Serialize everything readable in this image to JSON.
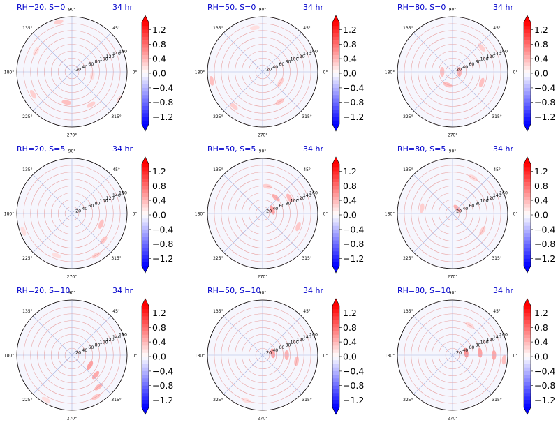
{
  "figure": {
    "time_label": "34 hr",
    "colors": {
      "title": "#0000cc",
      "cmap_low": "#0000ff",
      "cmap_mid": "#ffffff",
      "cmap_high": "#ff0000",
      "radial_grid_positive": "#e8a0a0",
      "radial_grid_negative": "#a8b4e0",
      "axis_frame": "#000000"
    }
  },
  "chart_data": [
    {
      "type": "heatmap",
      "projection": "polar",
      "title": "RH=20, S=0",
      "time": "34 hr",
      "rh": 20,
      "s": 0,
      "field": [
        {
          "r": 150,
          "theta": 105,
          "value": 0.3
        },
        {
          "r": 120,
          "theta": 150,
          "value": 0.2
        },
        {
          "r": 130,
          "theta": 210,
          "value": 0.3
        },
        {
          "r": 90,
          "theta": 260,
          "value": 0.4
        },
        {
          "r": 110,
          "theta": 300,
          "value": 0.3
        },
        {
          "r": 160,
          "theta": 330,
          "value": 0.25
        },
        {
          "r": 60,
          "theta": 350,
          "value": 0.2
        }
      ]
    },
    {
      "type": "heatmap",
      "projection": "polar",
      "title": "RH=50, S=0",
      "time": "34 hr",
      "rh": 50,
      "s": 0,
      "field": [
        {
          "r": 150,
          "theta": 190,
          "value": 0.4
        },
        {
          "r": 130,
          "theta": 230,
          "value": 0.3
        },
        {
          "r": 100,
          "theta": 300,
          "value": 0.35
        },
        {
          "r": 60,
          "theta": 330,
          "value": 0.3
        },
        {
          "r": 130,
          "theta": 100,
          "value": 0.2
        }
      ]
    },
    {
      "type": "heatmap",
      "projection": "polar",
      "title": "RH=80, S=0",
      "time": "34 hr",
      "rh": 80,
      "s": 0,
      "field": [
        {
          "r": 20,
          "theta": 0,
          "value": 0.5
        },
        {
          "r": 30,
          "theta": 180,
          "value": 0.4
        },
        {
          "r": 40,
          "theta": 250,
          "value": 0.4
        },
        {
          "r": 90,
          "theta": 340,
          "value": 0.4
        },
        {
          "r": 110,
          "theta": 40,
          "value": 0.3
        }
      ]
    },
    {
      "type": "heatmap",
      "projection": "polar",
      "title": "RH=20, S=5",
      "time": "34 hr",
      "rh": 20,
      "s": 5,
      "field": [
        {
          "r": 90,
          "theta": 340,
          "value": 0.4
        },
        {
          "r": 120,
          "theta": 320,
          "value": 0.35
        },
        {
          "r": 140,
          "theta": 300,
          "value": 0.3
        },
        {
          "r": 130,
          "theta": 250,
          "value": 0.2
        },
        {
          "r": 150,
          "theta": 200,
          "value": 0.2
        }
      ]
    },
    {
      "type": "heatmap",
      "projection": "polar",
      "title": "RH=50, S=5",
      "time": "34 hr",
      "rh": 50,
      "s": 5,
      "field": [
        {
          "r": 30,
          "theta": 20,
          "value": 0.6
        },
        {
          "r": 60,
          "theta": 50,
          "value": 0.5
        },
        {
          "r": 90,
          "theta": 30,
          "value": 0.45
        },
        {
          "r": 110,
          "theta": 340,
          "value": 0.35
        },
        {
          "r": 80,
          "theta": 80,
          "value": 0.3
        }
      ]
    },
    {
      "type": "heatmap",
      "projection": "polar",
      "title": "RH=80, S=5",
      "time": "34 hr",
      "rh": 80,
      "s": 5,
      "field": [
        {
          "r": 20,
          "theta": 45,
          "value": 0.5
        },
        {
          "r": 90,
          "theta": 170,
          "value": 0.3
        },
        {
          "r": 100,
          "theta": 330,
          "value": 0.3
        },
        {
          "r": 120,
          "theta": 60,
          "value": 0.25
        }
      ]
    },
    {
      "type": "heatmap",
      "projection": "polar",
      "title": "RH=20, S=10",
      "time": "34 hr",
      "rh": 20,
      "s": 10,
      "field": [
        {
          "r": 60,
          "theta": 330,
          "value": 0.6
        },
        {
          "r": 90,
          "theta": 320,
          "value": 0.55
        },
        {
          "r": 120,
          "theta": 310,
          "value": 0.45
        },
        {
          "r": 140,
          "theta": 300,
          "value": 0.35
        },
        {
          "r": 150,
          "theta": 240,
          "value": 0.2
        }
      ]
    },
    {
      "type": "heatmap",
      "projection": "polar",
      "title": "RH=50, S=10",
      "time": "34 hr",
      "rh": 50,
      "s": 10,
      "field": [
        {
          "r": 30,
          "theta": 10,
          "value": 0.6
        },
        {
          "r": 70,
          "theta": 0,
          "value": 0.5
        },
        {
          "r": 100,
          "theta": 350,
          "value": 0.4
        },
        {
          "r": 140,
          "theta": 250,
          "value": 0.2
        }
      ]
    },
    {
      "type": "heatmap",
      "projection": "polar",
      "title": "RH=80, S=10",
      "time": "34 hr",
      "rh": 80,
      "s": 10,
      "field": [
        {
          "r": 40,
          "theta": 10,
          "value": 0.7
        },
        {
          "r": 80,
          "theta": 5,
          "value": 0.6
        },
        {
          "r": 120,
          "theta": 0,
          "value": 0.55
        },
        {
          "r": 150,
          "theta": 355,
          "value": 0.4
        },
        {
          "r": 100,
          "theta": 60,
          "value": 0.25
        }
      ]
    }
  ],
  "polar_axes": {
    "angle_ticks": [
      "0°",
      "45°",
      "90°",
      "135°",
      "180°",
      "225°",
      "270°",
      "315°"
    ],
    "angle_values": [
      0,
      45,
      90,
      135,
      180,
      225,
      270,
      315
    ],
    "radial_ticks": [
      "20",
      "40",
      "60",
      "80",
      "100",
      "120",
      "140",
      "160"
    ],
    "radial_values": [
      20,
      40,
      60,
      80,
      100,
      120,
      140,
      160
    ],
    "rmax": 160,
    "radial_label_angle": 22.5
  },
  "colorbar": {
    "ticks": [
      "1.2",
      "0.8",
      "0.4",
      "0.0",
      "−0.4",
      "−0.8",
      "−1.2"
    ],
    "tick_values": [
      1.2,
      0.8,
      0.4,
      0.0,
      -0.4,
      -0.8,
      -1.2
    ],
    "vmin": -1.4,
    "vmax": 1.4,
    "extend": "both",
    "levels": 28
  }
}
